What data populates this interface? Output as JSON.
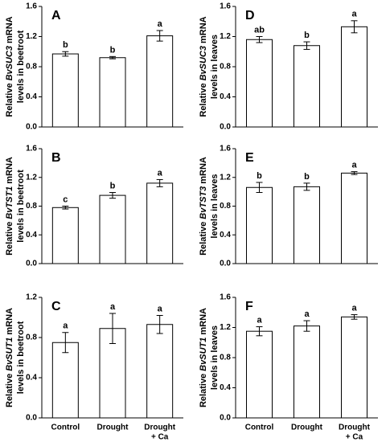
{
  "chart_data": [
    {
      "type": "bar",
      "panel": "A",
      "ylabel": {
        "prefix": "Relative",
        "gene": "BvSUC3",
        "suffix": "mRNA",
        "line2": "levels in beetroot"
      },
      "values": [
        0.97,
        0.92,
        1.21
      ],
      "errors": [
        0.03,
        0.015,
        0.07
      ],
      "annotations": [
        "b",
        "b",
        "a"
      ],
      "ylim": [
        0,
        1.6
      ],
      "yticks": [
        {
          "value": 0,
          "label": "0.0"
        },
        0.4,
        0.8,
        1.2,
        1.6
      ],
      "color": "#ffffff"
    },
    {
      "type": "bar",
      "panel": "B",
      "ylabel": {
        "prefix": "Relative",
        "gene": "BvTST1",
        "suffix": "mRNA",
        "line2": "levels in beetroot"
      },
      "values": [
        0.78,
        0.95,
        1.12
      ],
      "errors": [
        0.02,
        0.04,
        0.05
      ],
      "annotations": [
        "c",
        "b",
        "a"
      ],
      "ylim": [
        0,
        1.6
      ],
      "yticks": [
        {
          "value": 0,
          "label": "0.0"
        },
        0.4,
        0.8,
        1.2,
        1.6
      ],
      "color": "#ffffff"
    },
    {
      "type": "bar",
      "panel": "C",
      "ylabel": {
        "prefix": "Relative",
        "gene": "BvSUT1",
        "suffix": "mRNA",
        "line2": "levels in beetroot"
      },
      "categories": [
        [
          "Control"
        ],
        [
          "Drought"
        ],
        [
          "Drought",
          "+ Ca"
        ]
      ],
      "values": [
        0.75,
        0.89,
        0.93
      ],
      "errors": [
        0.1,
        0.15,
        0.09
      ],
      "annotations": [
        "a",
        "a",
        "a"
      ],
      "ylim": [
        0,
        1.2
      ],
      "yticks": [
        {
          "value": 0,
          "label": "0.0"
        },
        0.4,
        0.8,
        1.2
      ],
      "color": "#ffffff"
    },
    {
      "type": "bar",
      "panel": "D",
      "ylabel": {
        "prefix": "Relative",
        "gene": "BvSUC3",
        "suffix": "mRNA",
        "line2": "levels in leaves"
      },
      "values": [
        1.16,
        1.08,
        1.33
      ],
      "errors": [
        0.04,
        0.05,
        0.08
      ],
      "annotations": [
        "ab",
        "b",
        "a"
      ],
      "ylim": [
        0,
        1.6
      ],
      "yticks": [
        {
          "value": 0,
          "label": "0.0"
        },
        0.4,
        0.8,
        1.2,
        1.6
      ],
      "color": "#ffffff"
    },
    {
      "type": "bar",
      "panel": "E",
      "ylabel": {
        "prefix": "Relative",
        "gene": "BvTST3",
        "suffix": "mRNA",
        "line2": "levels in leaves"
      },
      "values": [
        1.06,
        1.07,
        1.26
      ],
      "errors": [
        0.07,
        0.05,
        0.02
      ],
      "annotations": [
        "b",
        "b",
        "a"
      ],
      "ylim": [
        0,
        1.6
      ],
      "yticks": [
        {
          "value": 0,
          "label": "0.0"
        },
        0.4,
        0.8,
        1.2,
        1.6
      ],
      "color": "#ffffff"
    },
    {
      "type": "bar",
      "panel": "F",
      "ylabel": {
        "prefix": "Relative",
        "gene": "BvSUT1",
        "suffix": "mRNA",
        "line2": "levels in leaves"
      },
      "categories": [
        [
          "Control"
        ],
        [
          "Drought"
        ],
        [
          "Drought",
          "+ Ca"
        ]
      ],
      "values": [
        1.15,
        1.22,
        1.34
      ],
      "errors": [
        0.06,
        0.07,
        0.03
      ],
      "annotations": [
        "a",
        "a",
        "a"
      ],
      "ylim": [
        0,
        1.6
      ],
      "yticks": [
        {
          "value": 0,
          "label": "0.0"
        },
        0.4,
        0.8,
        1.2,
        1.6
      ],
      "color": "#ffffff"
    }
  ]
}
